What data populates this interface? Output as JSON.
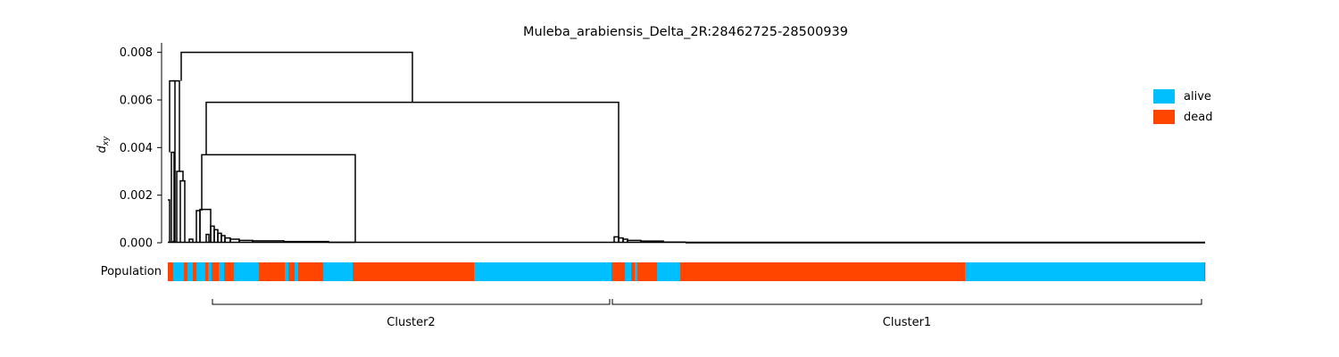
{
  "chart_data": {
    "type": "dendrogram",
    "title": "Muleba_arabiensis_Delta_2R:28462725-28500939",
    "ylabel_main": "d",
    "ylabel_sub": "xy",
    "ylim": [
      0,
      0.0084
    ],
    "yticks": [
      {
        "value": 0.0,
        "label": "0.000"
      },
      {
        "value": 0.002,
        "label": "0.002"
      },
      {
        "value": 0.004,
        "label": "0.004"
      },
      {
        "value": 0.006,
        "label": "0.006"
      },
      {
        "value": 0.008,
        "label": "0.008"
      }
    ],
    "population_label": "Population",
    "legend": [
      {
        "name": "alive",
        "color": "#00bfff"
      },
      {
        "name": "dead",
        "color": "#ff4500"
      }
    ],
    "population_order": [
      "dead",
      "alive",
      "dead",
      "alive",
      "dead",
      "alive",
      "dead",
      "alive",
      "dead",
      "alive",
      "dead",
      "alive",
      "dead",
      "alive",
      "dead",
      "alive",
      "dead",
      "alive",
      "dead",
      "alive",
      "dead",
      "alive",
      "dead",
      "alive",
      "dead",
      "alive",
      "dead",
      "alive",
      "dead"
    ],
    "population_widths": [
      6,
      12,
      4,
      6,
      4,
      10,
      3,
      4,
      8,
      6,
      11,
      28,
      29,
      4,
      7,
      4,
      28,
      33,
      136,
      154,
      15,
      7,
      4,
      3,
      22,
      26,
      319,
      268,
      1
    ],
    "merges": [
      {
        "left": [
          0,
          0.0018
        ],
        "right": [
          2,
          0.0
        ],
        "height": 0.0018
      },
      {
        "left": [
          6,
          0.0
        ],
        "right": [
          8,
          0.0
        ],
        "height": 5e-05
      },
      {
        "left": [
          4,
          0.0
        ],
        "right": [
          7,
          5e-05
        ],
        "height": 0.0038
      },
      {
        "left": [
          2,
          0.0038
        ],
        "right": [
          8,
          0.0
        ],
        "height": 0.0068
      },
      {
        "left": [
          14,
          0.0
        ],
        "right": [
          19,
          0.0
        ],
        "height": 0.0026
      },
      {
        "left": [
          10,
          0.0
        ],
        "right": [
          17,
          0.0026
        ],
        "height": 0.003
      },
      {
        "left": [
          5,
          0.0068
        ],
        "right": [
          13,
          0.003
        ],
        "height": 0.0068
      },
      {
        "left": [
          24,
          0.0
        ],
        "right": [
          28,
          0.0
        ],
        "height": 0.00015
      },
      {
        "left": [
          32,
          0.0
        ],
        "right": [
          36,
          0.0
        ],
        "height": 0.00135
      },
      {
        "left": [
          43,
          0.0
        ],
        "right": [
          46,
          0.0
        ],
        "height": 0.00035
      },
      {
        "left": [
          36,
          0.0
        ],
        "right": [
          48,
          0.0
        ],
        "height": 0.0014
      },
      {
        "left": [
          48,
          0.0
        ],
        "right": [
          52,
          0.0
        ],
        "height": 0.0007
      },
      {
        "left": [
          52,
          0.0
        ],
        "right": [
          56,
          0.0
        ],
        "height": 0.00055
      },
      {
        "left": [
          56,
          0.0
        ],
        "right": [
          60,
          0.0
        ],
        "height": 0.0004
      },
      {
        "left": [
          60,
          0.0
        ],
        "right": [
          64,
          0.0
        ],
        "height": 0.0003
      },
      {
        "left": [
          64,
          0.0
        ],
        "right": [
          70,
          0.0
        ],
        "height": 0.0002
      },
      {
        "left": [
          70,
          0.0
        ],
        "right": [
          80,
          0.0
        ],
        "height": 0.00015
      },
      {
        "left": [
          80,
          0.0
        ],
        "right": [
          95,
          0.0
        ],
        "height": 0.0001
      },
      {
        "left": [
          95,
          0.0
        ],
        "right": [
          130,
          0.0
        ],
        "height": 8e-05
      },
      {
        "left": [
          130,
          0.0
        ],
        "right": [
          180,
          0.0
        ],
        "height": 5e-05
      },
      {
        "left": [
          180,
          0.0
        ],
        "right": [
          210,
          0.0
        ],
        "height": 2e-05
      },
      {
        "left": [
          38,
          0.00135
        ],
        "right": [
          210,
          0.0
        ],
        "height": 0.0037
      },
      {
        "left": [
          43,
          0.0037
        ],
        "right": [
          505,
          0.0
        ],
        "height": 0.0059
      },
      {
        "left": [
          500,
          0.0
        ],
        "right": [
          505,
          0.0
        ],
        "height": 0.00025
      },
      {
        "left": [
          505,
          0.0
        ],
        "right": [
          510,
          0.0
        ],
        "height": 0.0002
      },
      {
        "left": [
          510,
          0.0
        ],
        "right": [
          515,
          0.0
        ],
        "height": 0.00015
      },
      {
        "left": [
          515,
          0.0
        ],
        "right": [
          530,
          0.0
        ],
        "height": 0.0001
      },
      {
        "left": [
          530,
          0.0
        ],
        "right": [
          555,
          0.0
        ],
        "height": 7e-05
      },
      {
        "left": [
          555,
          0.0
        ],
        "right": [
          580,
          0.0
        ],
        "height": 3e-05
      },
      {
        "left": [
          580,
          0.0
        ],
        "right": [
          1162,
          0.0
        ],
        "height": 0.0
      },
      {
        "left": [
          15,
          0.0068
        ],
        "right": [
          274,
          0.0059
        ],
        "height": 0.008
      }
    ],
    "total_leaves": 1162,
    "clusters": [
      {
        "name": "Cluster2",
        "start": 50,
        "end": 495
      },
      {
        "name": "Cluster1",
        "start": 498,
        "end": 1158
      }
    ]
  }
}
